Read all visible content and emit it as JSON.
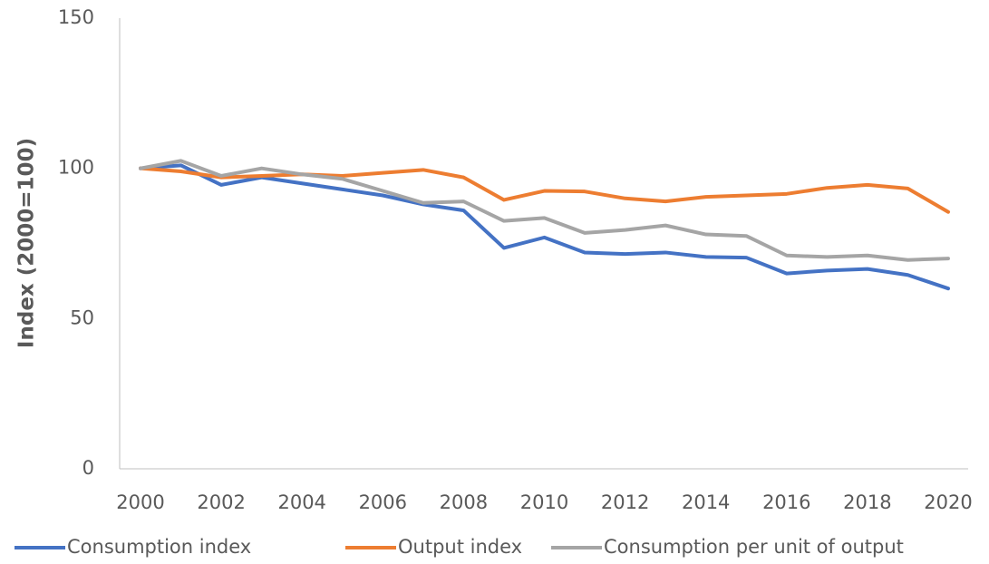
{
  "chart_data": {
    "type": "line",
    "y_label": "Index (2000=100)",
    "x": [
      2000,
      2001,
      2002,
      2003,
      2004,
      2005,
      2006,
      2007,
      2008,
      2009,
      2010,
      2011,
      2012,
      2013,
      2014,
      2015,
      2016,
      2017,
      2018,
      2019,
      2020
    ],
    "xlim": [
      2000,
      2020
    ],
    "xticks": [
      2000,
      2002,
      2004,
      2006,
      2008,
      2010,
      2012,
      2014,
      2016,
      2018,
      2020
    ],
    "ylim": [
      0,
      150
    ],
    "yticks": [
      0,
      50,
      100,
      150
    ],
    "grid": false,
    "legend": "bottom",
    "series": [
      {
        "name": "Consumption index",
        "color": "#4472c4",
        "values": [
          100,
          101,
          94.5,
          97,
          95,
          93,
          91,
          88,
          86,
          73.5,
          77,
          72,
          71.5,
          72,
          70.5,
          70.3,
          65,
          66,
          66.5,
          64.5,
          60
        ]
      },
      {
        "name": "Output index",
        "color": "#ed7d31",
        "values": [
          100,
          99,
          97,
          97.5,
          98,
          97.5,
          98.5,
          99.5,
          97,
          89.5,
          92.5,
          92.3,
          90,
          89,
          90.5,
          91,
          91.5,
          93.5,
          94.5,
          93.3,
          85.5
        ]
      },
      {
        "name": "Consumption per unit of output",
        "color": "#a5a5a5",
        "values": [
          100,
          102.5,
          97.5,
          100,
          98,
          96.5,
          92.5,
          88.5,
          89,
          82.5,
          83.5,
          78.5,
          79.5,
          81,
          78,
          77.5,
          71,
          70.5,
          71,
          69.5,
          70
        ]
      }
    ]
  }
}
